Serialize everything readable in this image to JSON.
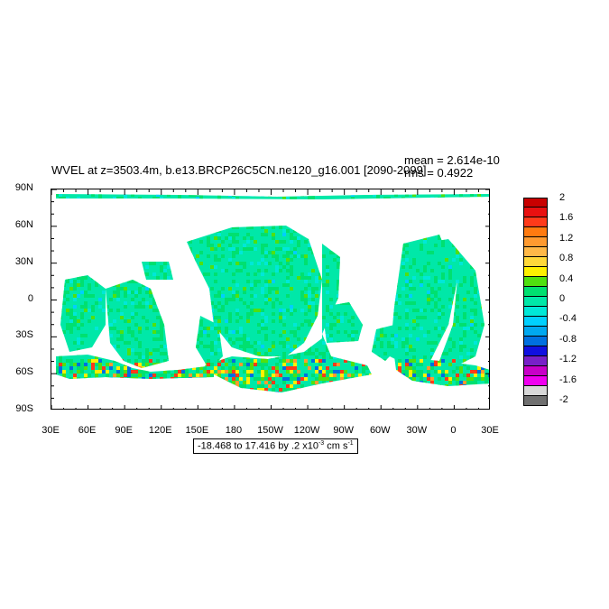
{
  "title": "WVEL at z=3503.4m, b.e13.BRCP26C5CN.ne120_g16.001 [2090-2099]",
  "stats": {
    "mean": "mean = 2.614e-10",
    "rms": "rms = 0.4922"
  },
  "chart_data": {
    "type": "heatmap",
    "title": "WVEL at z=3503.4m, b.e13.BRCP26C5CN.ne120_g16.001 [2090-2099]",
    "x_tick_labels": [
      "30E",
      "60E",
      "90E",
      "120E",
      "150E",
      "180",
      "150W",
      "120W",
      "90W",
      "60W",
      "30W",
      "0",
      "30E"
    ],
    "y_tick_labels": [
      "90N",
      "60N",
      "30N",
      "0",
      "30S",
      "60S",
      "90S"
    ],
    "xlim": [
      30,
      390
    ],
    "ylim": [
      -90,
      90
    ],
    "colorbar": {
      "labels": [
        "2",
        "1.6",
        "1.2",
        "0.8",
        "0.4",
        "0",
        "-0.4",
        "-0.8",
        "-1.2",
        "-1.6",
        "-2"
      ],
      "colors": [
        "#c80000",
        "#e81010",
        "#ff3a1a",
        "#ff7a10",
        "#ff9a30",
        "#ffb848",
        "#ffd83a",
        "#fff000",
        "#50e010",
        "#00e070",
        "#00e8a8",
        "#00e8d8",
        "#00d0ff",
        "#00a8f0",
        "#0070e0",
        "#1010e0",
        "#7820c8",
        "#c800c8",
        "#f000f0",
        "#d8d8d8",
        "#707070"
      ]
    },
    "info": {
      "range": "-18.468 to 17.416 by .2 x10",
      "exp": "-3",
      "units": " cm s",
      "units_exp": "-1"
    }
  }
}
